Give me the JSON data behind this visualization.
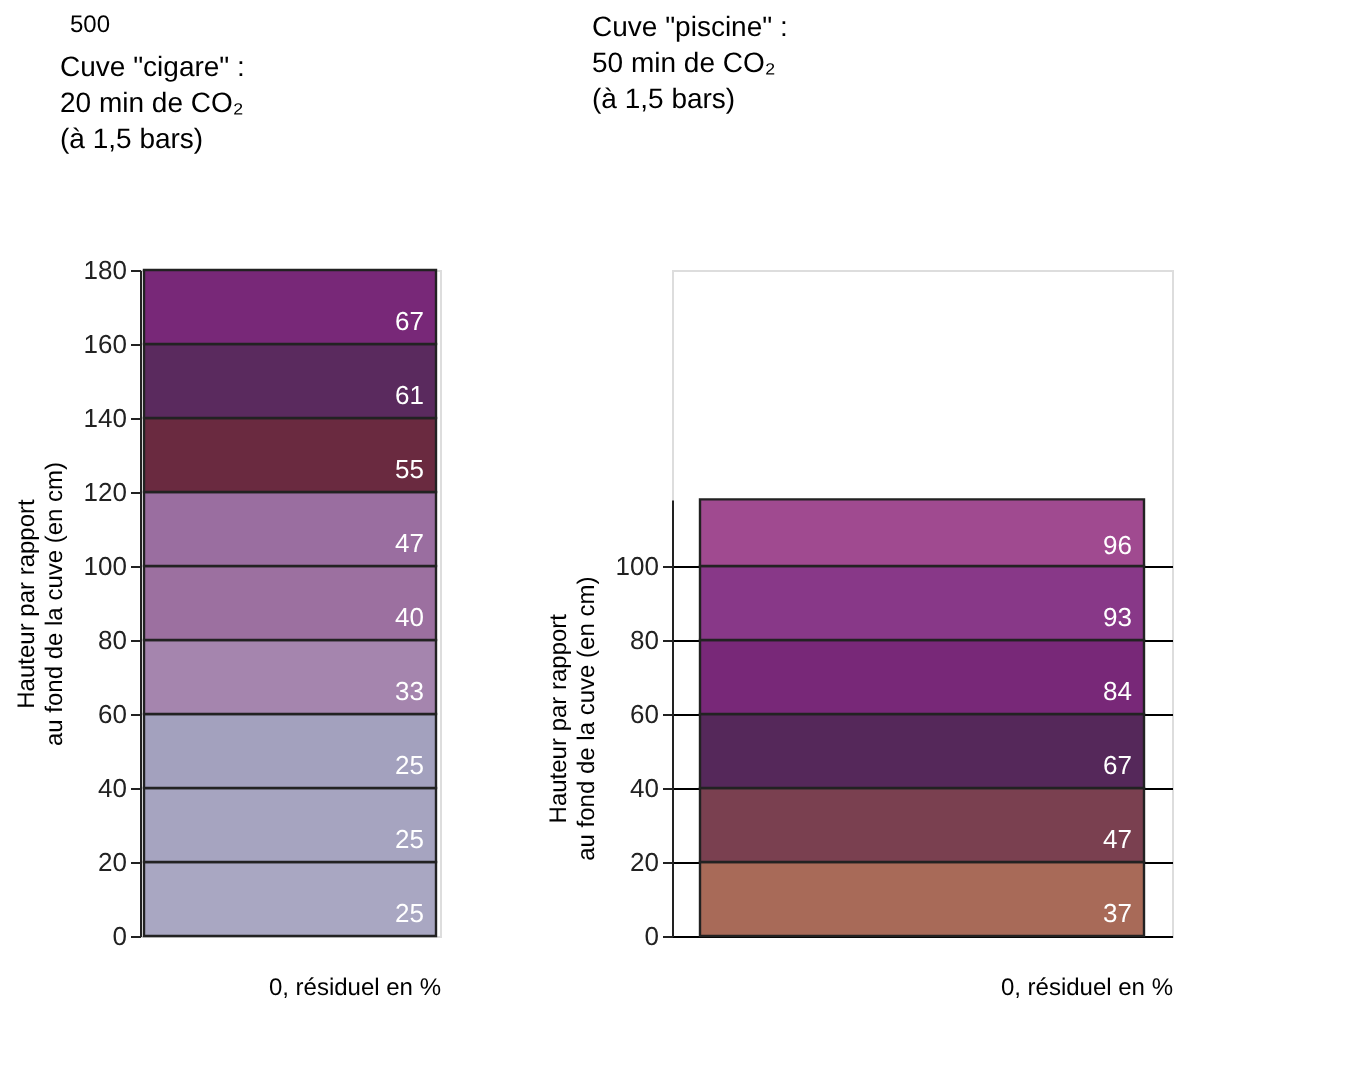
{
  "chart_data": [
    {
      "type": "bar",
      "stacked": true,
      "title": "Cuve \"cigare\" :\n20 min de CO₂\n(à 1,5 bars)",
      "ylabel": "Hauteur par rapport\nau fond de la cuve (en cm)",
      "xlabel": "0, résiduel en %",
      "categories": [
        null
      ],
      "ylim": [
        0,
        180
      ],
      "yticks": [
        0,
        20,
        40,
        60,
        80,
        100,
        120,
        140,
        160,
        180
      ],
      "grid": false,
      "annotations": [
        "500",
        "25",
        "25",
        "25",
        "33",
        "40",
        "47",
        "55",
        "61",
        "67"
      ],
      "series": [
        {
          "color": "#a9a7c2",
          "values": [
            20
          ]
        },
        {
          "color": "#a6a4c0",
          "values": [
            20
          ]
        },
        {
          "color": "#a3a1be",
          "values": [
            20
          ]
        },
        {
          "color": "#a585ae",
          "values": [
            20
          ]
        },
        {
          "color": "#9c70a0",
          "values": [
            20
          ]
        },
        {
          "color": "#9a6ea0",
          "values": [
            20
          ]
        },
        {
          "color": "#6a2a40",
          "values": [
            20
          ]
        },
        {
          "color": "#5a2a5e",
          "values": [
            20
          ]
        },
        {
          "color": "#782878",
          "values": [
            20
          ]
        }
      ]
    },
    {
      "type": "bar",
      "stacked": true,
      "title": "Cuve \"piscine\" :\n50 min de CO₂\n(à 1,5 bars)",
      "ylabel": "Hauteur par rapport\nau fond de la cuve (en cm)",
      "xlabel": "0, résiduel en %",
      "categories": [
        null
      ],
      "ylim": [
        0,
        118
      ],
      "yticks": [
        0,
        20,
        40,
        60,
        80,
        100
      ],
      "grid": "y",
      "annotations": [
        "37",
        "47",
        "67",
        "84",
        "93",
        "96"
      ],
      "series": [
        {
          "color": "#a86a58",
          "values": [
            20
          ]
        },
        {
          "color": "#7a4050",
          "values": [
            20
          ]
        },
        {
          "color": "#55285a",
          "values": [
            20
          ]
        },
        {
          "color": "#782878",
          "values": [
            20
          ]
        },
        {
          "color": "#883888",
          "values": [
            20
          ]
        },
        {
          "color": "#a04a90",
          "values": [
            18
          ]
        }
      ]
    }
  ]
}
